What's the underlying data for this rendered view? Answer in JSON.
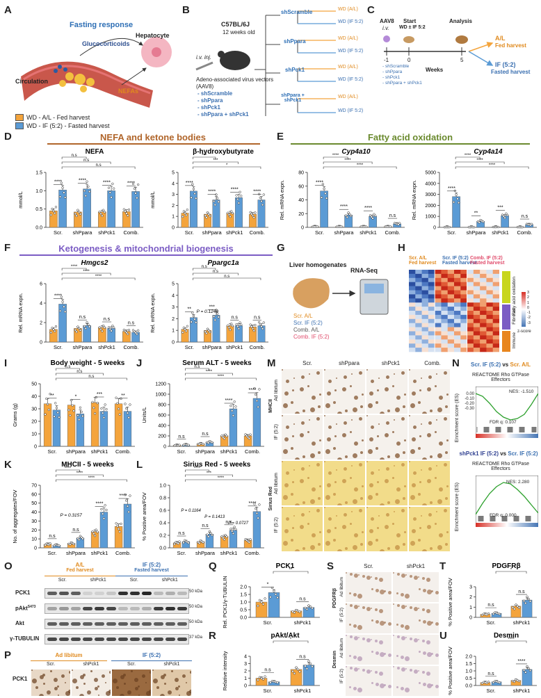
{
  "labels": {
    "A": "A",
    "B": "B",
    "C": "C",
    "D": "D",
    "E": "E",
    "F": "F",
    "G": "G",
    "H": "H",
    "I": "I",
    "J": "J",
    "K": "K",
    "L": "L",
    "M": "M",
    "N": "N",
    "O": "O",
    "P": "P",
    "Q": "Q",
    "R": "R",
    "S": "S",
    "T": "T",
    "U": "U"
  },
  "panelA": {
    "title": "Fasting response",
    "glucocorticoids": "Glucocorticoids",
    "hepatocyte": "Hepatocyte",
    "circulation": "Circulation",
    "nefas": "NEFAs"
  },
  "panelB": {
    "iv": "i.v. inj.",
    "mouse": "C57BL/6J",
    "age": "12 weeks old",
    "vector": "Adeno-associated virus vectors",
    "vector2": "(AAV8)",
    "groups": [
      "- shScramble",
      "- shPpara",
      "- shPck1",
      "- shPpara + shPck1"
    ],
    "arms": [
      {
        "name": "shScramble",
        "al": "WD (A/L)",
        "if": "WD (IF 5:2)"
      },
      {
        "name": "shPpara",
        "al": "WD (A/L)",
        "if": "WD (IF 5:2)"
      },
      {
        "name": "shPck1",
        "al": "WD (A/L)",
        "if": "WD (IF 5:2)"
      },
      {
        "name": "shPpara + shPck1",
        "al": "WD (A/L)",
        "if": "WD (IF 5:2)"
      }
    ]
  },
  "panelC": {
    "aav": "AAV8",
    "iv": "i.v.",
    "start": "Start",
    "start2": "WD ± IF 5:2",
    "analysis": "Analysis",
    "ticks": [
      "-1",
      "0",
      "5"
    ],
    "weeks": "Weeks",
    "groups": [
      "- shScramble",
      "- shPpara",
      "- shPck1",
      "- shPpara + shPck1"
    ],
    "al": "A/L",
    "al2": "Fed harvest",
    "if": "IF (5:2)",
    "if2": "Fasted harvest"
  },
  "legend": {
    "al": "WD - A/L - Fed harvest",
    "if": "WD - IF (5:2) - Fasted harvest"
  },
  "colors": {
    "al": "#f4a43c",
    "if": "#5b9bd5",
    "secD": "#b0652a",
    "secE": "#6a8a2e",
    "secF": "#7b5cc4",
    "alText": "#e08a1e",
    "ifText": "#3a6fb0",
    "combal": "#555555",
    "combif": "#e04a6a"
  },
  "groups4": [
    "Scr.",
    "shPpara",
    "shPck1",
    "Comb."
  ],
  "groups2": [
    "Scr.",
    "shPck1"
  ],
  "sections": {
    "D": "NEFA and ketone bodies",
    "E": "Fatty acid oxidation",
    "F": "Ketogenesis & mitochondrial biogenesis"
  },
  "charts": {
    "nefa": {
      "title": "NEFA",
      "ylabel": "mmol/L",
      "ymax": 1.5,
      "ticks": [
        "0.0",
        "0.5",
        "1.0",
        "1.5"
      ],
      "al": [
        0.45,
        0.42,
        0.42,
        0.43
      ],
      "if": [
        1.02,
        1.05,
        1.0,
        0.98
      ],
      "stars": [
        "****",
        "****",
        "****",
        "****"
      ],
      "top": [
        "n.s",
        "n.s",
        "n.s"
      ]
    },
    "bhb": {
      "title": "β-hydroxybutyrate",
      "ylabel": "mmol/L",
      "ymax": 5,
      "ticks": [
        "0",
        "1",
        "2",
        "3",
        "4",
        "5"
      ],
      "al": [
        1.3,
        1.2,
        1.3,
        1.2
      ],
      "if": [
        3.3,
        2.5,
        2.7,
        2.5
      ],
      "stars": [
        "****",
        "****",
        "****",
        "****"
      ],
      "top": [
        "***",
        "***",
        "*"
      ]
    },
    "cyp10": {
      "title": "Cyp4a10",
      "ylabel": "Rel. mRNA expn.",
      "ymax": 80,
      "ticks": [
        "0",
        "20",
        "40",
        "60",
        "80"
      ],
      "al": [
        1,
        1,
        1,
        1
      ],
      "if": [
        53,
        18,
        16,
        5
      ],
      "stars": [
        "****",
        "****",
        "****",
        "n.s"
      ],
      "top": [
        "****",
        "****",
        "****"
      ]
    },
    "cyp14": {
      "title": "Cyp4a14",
      "ylabel": "Rel. mRNA expn.",
      "ymax": 5000,
      "ticks": [
        "0",
        "1000",
        "2000",
        "3000",
        "4000",
        "5000"
      ],
      "al": [
        20,
        20,
        30,
        20
      ],
      "if": [
        2800,
        550,
        1050,
        250
      ],
      "stars": [
        "****",
        "**",
        "***",
        "n.s"
      ],
      "top": [
        "****",
        "****",
        "****"
      ]
    },
    "hmgcs2": {
      "title": "Hmgcs2",
      "ylabel": "Rel. mRNA expn.",
      "ymax": 6,
      "ticks": [
        "0",
        "2",
        "4",
        "6"
      ],
      "al": [
        1.3,
        1.4,
        1.5,
        1.1
      ],
      "if": [
        3.9,
        1.7,
        1.4,
        1.0
      ],
      "stars": [
        "****",
        "n.s",
        "n.s",
        "n.s"
      ],
      "top": [
        "****",
        "****",
        "****"
      ]
    },
    "ppargc": {
      "title": "Ppargc1a",
      "ylabel": "Rel. mRNA expn.",
      "ymax": 5,
      "ticks": [
        "0",
        "1",
        "2",
        "3",
        "4",
        "5"
      ],
      "al": [
        1.1,
        1.0,
        1.4,
        1.3
      ],
      "if": [
        2.1,
        2.3,
        1.4,
        1.4
      ],
      "stars": [
        "**",
        "***",
        "n.s",
        "n.s"
      ],
      "top": [
        "n.s",
        "n.s",
        "n.s"
      ],
      "pval": "P = 0.1249"
    },
    "bw": {
      "title": "Body weight - 5 weeks",
      "ylabel": "Grams (g)",
      "ymax": 50,
      "ticks": [
        "0",
        "10",
        "20",
        "30",
        "40",
        "50"
      ],
      "al": [
        34,
        33,
        35,
        34
      ],
      "if": [
        29,
        26,
        28,
        28
      ],
      "stars": [
        "**",
        "*",
        "***",
        "**"
      ],
      "top": [
        "n.s",
        "n.s",
        "n.s"
      ]
    },
    "alt": {
      "title": "Serum ALT - 5 weeks",
      "ylabel": "Units/L",
      "ymax": 1200,
      "ticks": [
        "0",
        "200",
        "400",
        "600",
        "800",
        "1000",
        "1200"
      ],
      "al": [
        20,
        50,
        200,
        200
      ],
      "if": [
        30,
        80,
        720,
        920
      ],
      "stars": [
        "n.s",
        "n.s",
        "****",
        "****"
      ],
      "top": [
        "n.s",
        "****",
        "****"
      ]
    },
    "mhc": {
      "title": "MHCII - 5 weeks",
      "ylabel": "No. of aggregates/FOV",
      "ymax": 70,
      "ticks": [
        "0",
        "10",
        "20",
        "30",
        "40",
        "50",
        "60",
        "70"
      ],
      "al": [
        4,
        5,
        18,
        24
      ],
      "if": [
        3,
        11,
        40,
        49
      ],
      "stars": [
        "n.s",
        "n.s",
        "****",
        "****"
      ],
      "top": [
        "****",
        "****",
        "****"
      ],
      "pval": "P = 0.3157"
    },
    "sirius": {
      "title": "Sirius Red - 5 weeks",
      "ylabel": "% Positive area/FOV",
      "ymax": 1.0,
      "ticks": [
        "0.0",
        "0.2",
        "0.4",
        "0.6",
        "0.8",
        "1.0"
      ],
      "al": [
        0.08,
        0.1,
        0.18,
        0.12
      ],
      "if": [
        0.1,
        0.22,
        0.28,
        0.58
      ],
      "stars": [
        "n.s",
        "n.s",
        "n.s",
        "****"
      ],
      "top": [
        "****",
        "***",
        "****"
      ],
      "pvals": [
        "P = 0.1164",
        "P = 0.1413",
        "P = 0.0727"
      ]
    },
    "pck1": {
      "title": "PCK1",
      "ylabel": "Rel. PCK1/γ-TUBULIN",
      "ymax": 2.0,
      "ticks": [
        "0.0",
        "0.5",
        "1.0",
        "1.5",
        "2.0"
      ],
      "al": [
        1.0,
        0.42
      ],
      "if": [
        1.62,
        0.65
      ],
      "stars": [
        "*",
        "n.s"
      ],
      "top": [
        "**"
      ]
    },
    "pakt": {
      "title": "pAkt/Akt",
      "ylabel": "Relative intensity",
      "ymax": 4,
      "ticks": [
        "0",
        "1",
        "2",
        "3",
        "4"
      ],
      "al": [
        1.0,
        2.2
      ],
      "if": [
        0.5,
        2.8
      ],
      "stars": [
        "n.s",
        "n.s"
      ],
      "top": [
        "*"
      ]
    },
    "pdgf": {
      "title": "PDGFRβ",
      "ylabel": "% Positive area/FOV",
      "ymax": 3,
      "ticks": [
        "0",
        "1",
        "2",
        "3"
      ],
      "al": [
        0.3,
        1.1
      ],
      "if": [
        0.4,
        1.7
      ],
      "stars": [
        "n.s",
        "n.s"
      ],
      "top": [
        "*"
      ]
    },
    "desmin": {
      "title": "Desmin",
      "ylabel": "% Positive area/FOV",
      "ymax": 2.0,
      "ticks": [
        "0.0",
        "0.5",
        "1.0",
        "1.5",
        "2.0"
      ],
      "al": [
        0.2,
        0.35
      ],
      "if": [
        0.25,
        1.1
      ],
      "stars": [
        "n.s",
        "****"
      ],
      "top": [
        "****"
      ]
    }
  },
  "panelG": {
    "title": "Liver homogenates",
    "rnaseq": "RNA-Seq",
    "lines": [
      "Scr. A/L",
      "Scr. IF (5:2)",
      "Comb. A/L",
      "Comb. IF (5:2)"
    ]
  },
  "panelH": {
    "heads": [
      {
        "a": "Scr. A/L",
        "b": "Fed harvest"
      },
      {
        "a": "Scr. IF (5:2)",
        "b": "Fasted harvest"
      },
      {
        "a": "Comb. IF (5:2)",
        "b": "Fasted harvest"
      }
    ],
    "cats": [
      "Fatty acid oxidation",
      "Fibrosis",
      "Immune"
    ],
    "scale": [
      "3",
      "2",
      "1",
      "0",
      "-1",
      "-2",
      "-3"
    ],
    "zscore": "z-score"
  },
  "panelM": {
    "cols": [
      "Scr.",
      "shPpara",
      "shPck1",
      "Comb."
    ],
    "rowsA": [
      "Ad libitum",
      "IF (5:2)"
    ],
    "stainA": "MHCII",
    "stainB": "Sirius Red"
  },
  "panelN": {
    "comp1a": "Scr. IF (5:2)",
    "vs": "vs",
    "comp1b": "Scr. A/L",
    "path": "REACTOME Rho GTPase",
    "path2": "Effectors",
    "nes1": "NES: -1.510",
    "fdr1": "FDR q: 0.107",
    "comp2a": "shPck1 IF (5:2)",
    "comp2b": "Scr. IF (5:2)",
    "nes2": "NES: 2.280",
    "fdr2": "FDR q: 0.000",
    "es": "Enrichment",
    "es2": "score (ES)",
    "ticks1": [
      "0.00",
      "-0.10",
      "-0.20",
      "-0.30"
    ]
  },
  "panelO": {
    "al": "A/L",
    "al2": "Fed harvest",
    "if": "IF (5:2)",
    "if2": "Fasted harvest",
    "cols": [
      "Scr.",
      "shPck1",
      "Scr.",
      "shPck1"
    ],
    "rows": [
      "PCK1",
      "pAkt",
      "Akt",
      "γ-TUBULIN"
    ],
    "sup": "S473",
    "kda": [
      "50 kDa",
      "50 kDa",
      "50 kDa",
      "37 kDa"
    ]
  },
  "panelP": {
    "al": "Ad libitum",
    "if": "IF (5:2)",
    "cols": [
      "Scr.",
      "shPck1",
      "Scr.",
      "shPck1"
    ],
    "row": "PCK1"
  },
  "panelS": {
    "cols": [
      "Scr.",
      "shPck1"
    ],
    "rows": [
      "Ad libitum",
      "IF (5:2)",
      "Ad libitum",
      "IF (5:2)"
    ],
    "stainA": "PDGFRβ",
    "stainB": "Desmin"
  }
}
